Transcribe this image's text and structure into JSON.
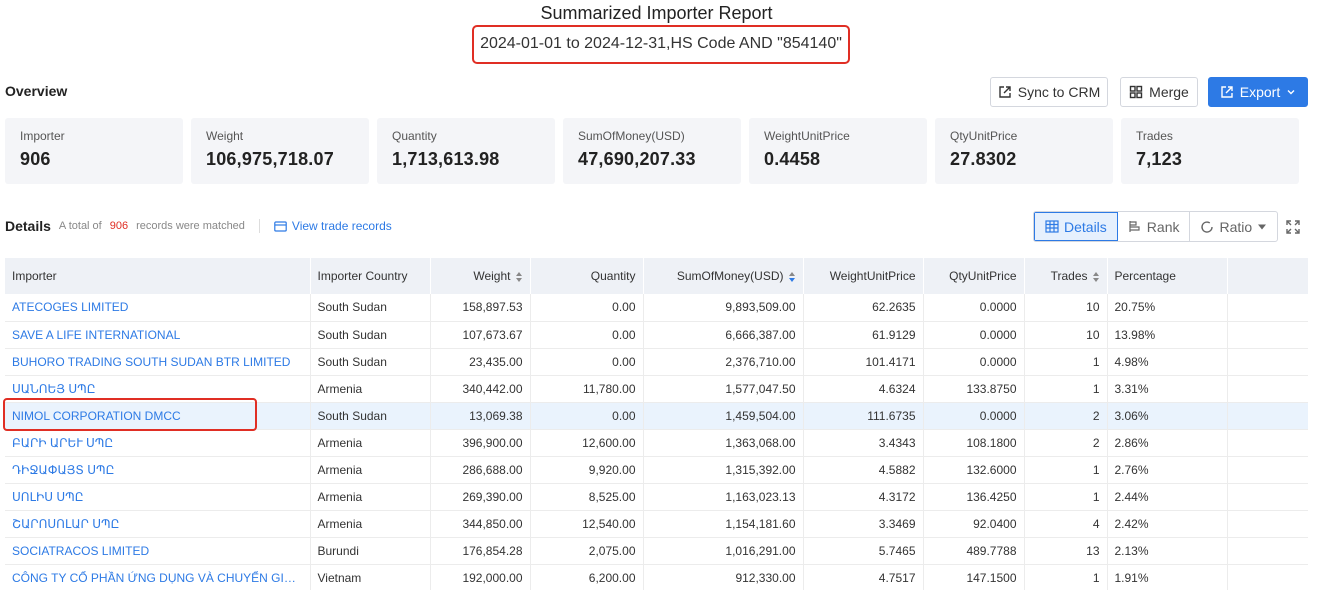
{
  "report": {
    "title": "Summarized Importer Report",
    "subtitle": "2024-01-01 to 2024-12-31,HS Code AND \"854140\""
  },
  "overview_label": "Overview",
  "buttons": {
    "sync": "Sync to CRM",
    "merge": "Merge",
    "export": "Export"
  },
  "stats": [
    {
      "label": "Importer",
      "value": "906"
    },
    {
      "label": "Weight",
      "value": "106,975,718.07"
    },
    {
      "label": "Quantity",
      "value": "1,713,613.98"
    },
    {
      "label": "SumOfMoney(USD)",
      "value": "47,690,207.33"
    },
    {
      "label": "WeightUnitPrice",
      "value": "0.4458"
    },
    {
      "label": "QtyUnitPrice",
      "value": "27.8302"
    },
    {
      "label": "Trades",
      "value": "7,123"
    }
  ],
  "details": {
    "title": "Details",
    "prefix": "A total of",
    "count": "906",
    "suffix": "records were matched",
    "view_link": "View trade records"
  },
  "view_tabs": {
    "details": "Details",
    "rank": "Rank",
    "ratio": "Ratio"
  },
  "columns": [
    "Importer",
    "Importer Country",
    "Weight",
    "Quantity",
    "SumOfMoney(USD)",
    "WeightUnitPrice",
    "QtyUnitPrice",
    "Trades",
    "Percentage"
  ],
  "rows": [
    [
      "ATECOGES LIMITED",
      "South Sudan",
      "158,897.53",
      "0.00",
      "9,893,509.00",
      "62.2635",
      "0.0000",
      "10",
      "20.75%"
    ],
    [
      "SAVE A LIFE INTERNATIONAL",
      "South Sudan",
      "107,673.67",
      "0.00",
      "6,666,387.00",
      "61.9129",
      "0.0000",
      "10",
      "13.98%"
    ],
    [
      "BUHORO TRADING SOUTH SUDAN BTR LIMITED",
      "South Sudan",
      "23,435.00",
      "0.00",
      "2,376,710.00",
      "101.4171",
      "0.0000",
      "1",
      "4.98%"
    ],
    [
      "ՍԱՆՈԵՅ ՍՊԸ",
      "Armenia",
      "340,442.00",
      "11,780.00",
      "1,577,047.50",
      "4.6324",
      "133.8750",
      "1",
      "3.31%"
    ],
    [
      "NIMOL CORPORATION DMCC",
      "South Sudan",
      "13,069.38",
      "0.00",
      "1,459,504.00",
      "111.6735",
      "0.0000",
      "2",
      "3.06%"
    ],
    [
      "ԲԱՐԻ ԱՐԵՒ ՍՊԸ",
      "Armenia",
      "396,900.00",
      "12,600.00",
      "1,363,068.00",
      "3.4343",
      "108.1800",
      "2",
      "2.86%"
    ],
    [
      "ԴԻՋԱՓԱՅՏ ՍՊԸ",
      "Armenia",
      "286,688.00",
      "9,920.00",
      "1,315,392.00",
      "4.5882",
      "132.6000",
      "1",
      "2.76%"
    ],
    [
      "ՍՈԼԻՍ ՍՊԸ",
      "Armenia",
      "269,390.00",
      "8,525.00",
      "1,163,023.13",
      "4.3172",
      "136.4250",
      "1",
      "2.44%"
    ],
    [
      "ՇԱՐՈՍՈԼԱՐ ՍՊԸ",
      "Armenia",
      "344,850.00",
      "12,540.00",
      "1,154,181.60",
      "3.3469",
      "92.0400",
      "4",
      "2.42%"
    ],
    [
      "SOCIATRACOS LIMITED",
      "Burundi",
      "176,854.28",
      "2,075.00",
      "1,016,291.00",
      "5.7465",
      "489.7788",
      "13",
      "2.13%"
    ],
    [
      "CÔNG TY CỔ PHẦN ỨNG DỤNG VÀ CHUYỂN GIAO CÔNG...",
      "Vietnam",
      "192,000.00",
      "6,200.00",
      "912,330.00",
      "4.7517",
      "147.1500",
      "1",
      "1.91%"
    ]
  ],
  "highlight_row": 4,
  "colors": {
    "accent": "#2d7ae5",
    "highlight_border": "#e02e24",
    "count_red": "#e02e24",
    "stat_bg": "#f4f5f8",
    "header_bg": "#eef1f6",
    "row_highlight": "#eaf3fd"
  },
  "icons": {
    "sync": "external-link-icon",
    "merge": "merge-grid-icon",
    "export": "export-icon",
    "view": "credit-card-icon",
    "details": "table-icon",
    "rank": "rank-icon",
    "ratio": "loading-ring-icon",
    "expand": "fullscreen-icon"
  }
}
